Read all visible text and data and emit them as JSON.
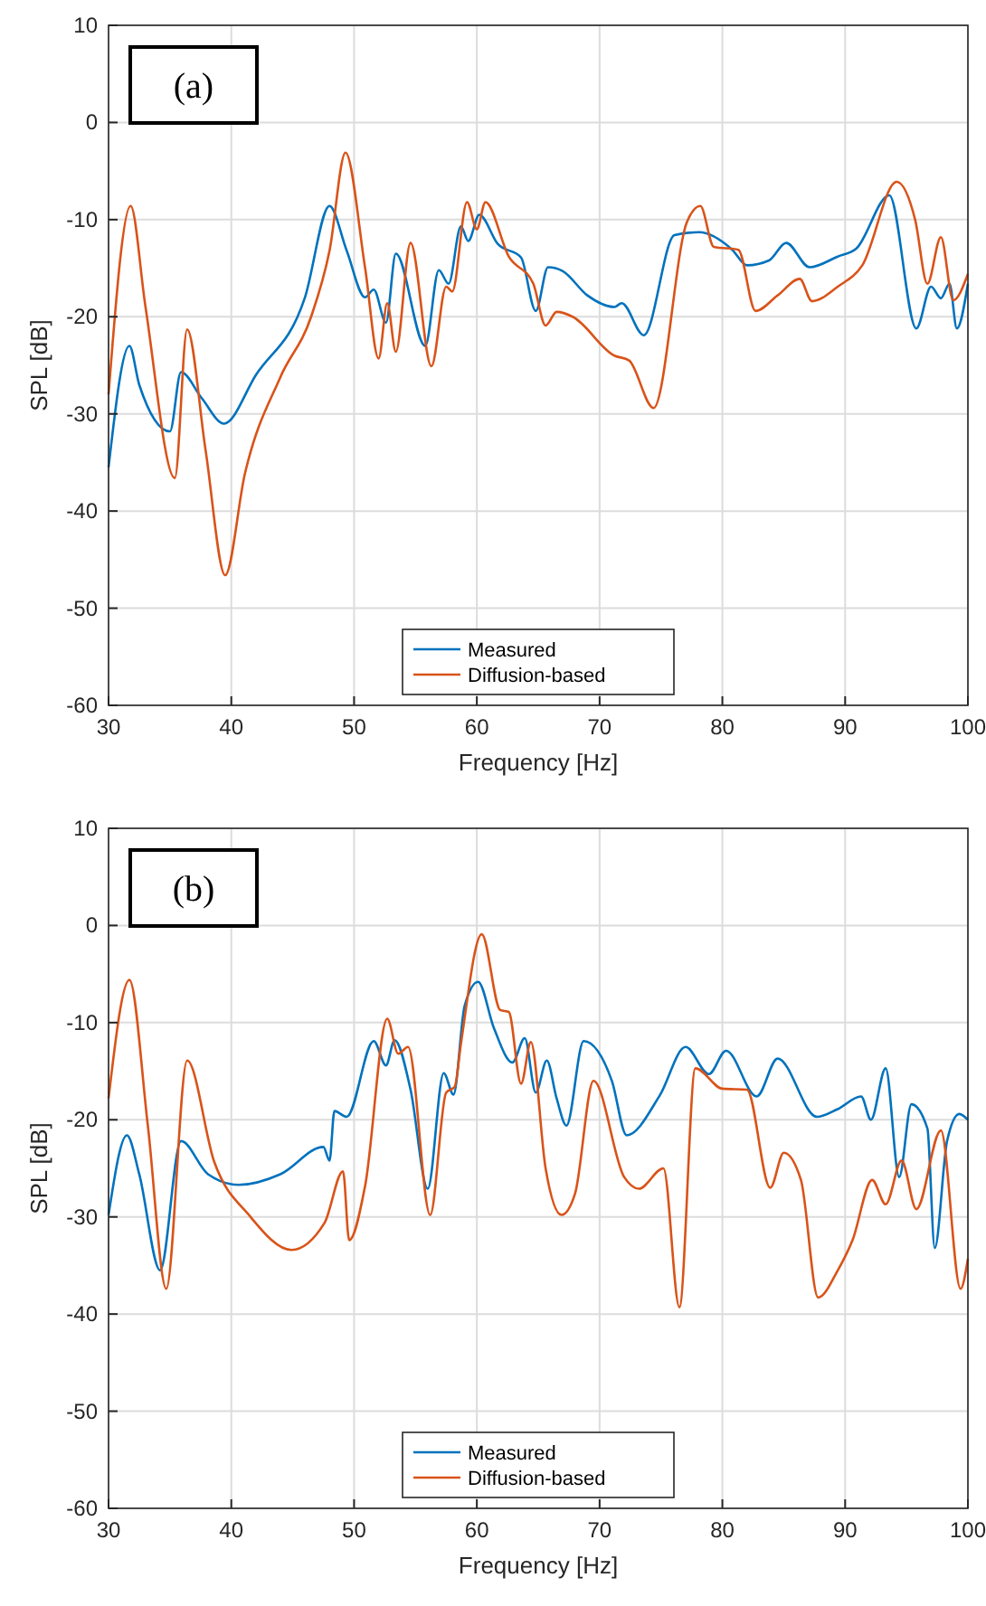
{
  "chart_data": [
    {
      "type": "line",
      "xlabel": "Frequency [Hz]",
      "ylabel": "SPL [dB]",
      "xlim": [
        30,
        100
      ],
      "ylim": [
        -60,
        10
      ],
      "xticks": [
        30,
        40,
        50,
        60,
        70,
        80,
        90,
        100
      ],
      "yticks": [
        -60,
        -50,
        -40,
        -30,
        -20,
        -10,
        0,
        10
      ],
      "grid": true,
      "legend": "bottom",
      "annotations": [
        "(a)"
      ],
      "series": [
        {
          "name": "Measured",
          "color": "#0072bd",
          "x": [
            30,
            31.7,
            32.5,
            35,
            35.9,
            37.6,
            39.4,
            42,
            46,
            48,
            49.4,
            50.9,
            51.6,
            52.6,
            53.4,
            55.8,
            56.9,
            57.7,
            58.7,
            59.3,
            60.2,
            61.7,
            63.6,
            64.8,
            65.8,
            67,
            69,
            71.2,
            71.8,
            73.6,
            76.1,
            78.1,
            80.8,
            82,
            83.8,
            85.2,
            87.1,
            89.4,
            90.9,
            93.6,
            95.8,
            97,
            97.8,
            98.5,
            99.1,
            100
          ],
          "values": [
            -35.5,
            -23,
            -27,
            -31.8,
            -25.7,
            -28.4,
            -31,
            -26,
            -18,
            -8.6,
            -13.2,
            -18,
            -17.2,
            -20.6,
            -13.5,
            -23,
            -15.2,
            -16.6,
            -10.7,
            -12.2,
            -9.5,
            -12.5,
            -13.9,
            -19.4,
            -14.9,
            -15.3,
            -17.8,
            -19,
            -18.6,
            -21.9,
            -11.6,
            -11.3,
            -13.1,
            -14.7,
            -14.2,
            -12.4,
            -14.9,
            -13.8,
            -13,
            -7.5,
            -21.2,
            -16.9,
            -18.1,
            -16.6,
            -21.2,
            -16.6
          ]
        },
        {
          "name": "Diffusion-based",
          "color": "#d95319",
          "x": [
            30,
            31.8,
            33,
            35.4,
            36.4,
            37.9,
            39.5,
            41.1,
            44,
            46.5,
            48,
            49.3,
            50.9,
            52,
            52.7,
            53.4,
            54.6,
            56.3,
            57.5,
            58,
            59.2,
            60,
            60.7,
            62.6,
            64.6,
            65.6,
            66.5,
            67.8,
            71.2,
            72.4,
            74.4,
            77.1,
            78.2,
            79.3,
            81.3,
            82.7,
            84.5,
            86.3,
            87.3,
            89.4,
            91.4,
            94.2,
            95.7,
            96.7,
            97.8,
            98.8,
            100
          ],
          "values": [
            -28,
            -8.6,
            -18.9,
            -36.6,
            -21.3,
            -33.7,
            -46.6,
            -36.2,
            -26.2,
            -20,
            -13.2,
            -3.1,
            -15,
            -24.3,
            -18.6,
            -23.6,
            -12.4,
            -25.1,
            -16.9,
            -17.4,
            -8.2,
            -11,
            -8.2,
            -13.8,
            -16.6,
            -20.9,
            -19.5,
            -20,
            -24,
            -24.5,
            -29.4,
            -10.3,
            -8.6,
            -12.8,
            -13.1,
            -19.4,
            -17.8,
            -16.1,
            -18.4,
            -16.9,
            -14.7,
            -6.1,
            -10,
            -16.6,
            -11.8,
            -18.3,
            -15.6
          ]
        }
      ]
    },
    {
      "type": "line",
      "xlabel": "Frequency [Hz]",
      "ylabel": "SPL [dB]",
      "xlim": [
        30,
        100
      ],
      "ylim": [
        -60,
        10
      ],
      "xticks": [
        30,
        40,
        50,
        60,
        70,
        80,
        90,
        100
      ],
      "yticks": [
        -60,
        -50,
        -40,
        -30,
        -20,
        -10,
        0,
        10
      ],
      "grid": true,
      "legend": "bottom",
      "annotations": [
        "(b)"
      ],
      "series": [
        {
          "name": "Measured",
          "color": "#0072bd",
          "x": [
            30,
            31.5,
            32.5,
            34.2,
            35.9,
            38.1,
            40.6,
            44,
            47.5,
            48,
            48.4,
            49.4,
            51.6,
            52.6,
            53.3,
            54.6,
            56,
            57.3,
            58.1,
            59,
            60.1,
            61.4,
            62.9,
            63.9,
            64.8,
            65.7,
            66.5,
            67.3,
            68.7,
            71,
            72.2,
            74.9,
            77,
            78.9,
            80.3,
            82.8,
            84.5,
            87.7,
            89.4,
            91.3,
            92.1,
            93.3,
            94.4,
            95.4,
            96.7,
            97.3,
            98.3,
            99.3,
            100
          ],
          "values": [
            -29.8,
            -21.6,
            -25.6,
            -35.5,
            -22.2,
            -25.6,
            -26.7,
            -25.6,
            -22.8,
            -24.2,
            -19.1,
            -19.7,
            -11.9,
            -14.4,
            -11.8,
            -16.9,
            -27.1,
            -15.2,
            -17.4,
            -8.3,
            -5.8,
            -10.6,
            -14.1,
            -11.6,
            -17.2,
            -13.9,
            -17.8,
            -20.6,
            -11.9,
            -16,
            -21.6,
            -17.5,
            -12.5,
            -15.3,
            -12.9,
            -17.6,
            -13.7,
            -19.7,
            -18.9,
            -17.6,
            -20,
            -14.7,
            -25.9,
            -18.4,
            -20.9,
            -33.2,
            -22.2,
            -19.4,
            -20
          ]
        },
        {
          "name": "Diffusion-based",
          "color": "#d95319",
          "x": [
            30,
            31.7,
            33.2,
            34.7,
            36.4,
            38.6,
            41.5,
            44.9,
            47.6,
            49.1,
            49.6,
            50.9,
            52.7,
            53.6,
            54.4,
            56.2,
            57.5,
            58.2,
            58.7,
            60.4,
            61.9,
            62.6,
            63.6,
            64.4,
            65.6,
            66.9,
            68,
            69.5,
            72,
            73.2,
            75.2,
            76.5,
            77.8,
            80,
            82,
            83.9,
            85,
            86.4,
            87.8,
            89.4,
            90.6,
            92.2,
            93.3,
            94.6,
            95.8,
            97.8,
            99.4,
            100
          ],
          "values": [
            -17.8,
            -5.6,
            -20.6,
            -37.4,
            -13.9,
            -24.3,
            -29.9,
            -33.4,
            -30.6,
            -25.3,
            -32.4,
            -26.8,
            -9.6,
            -13.2,
            -12.5,
            -29.8,
            -17.2,
            -16.6,
            -12.2,
            -0.9,
            -8.7,
            -8.9,
            -16.3,
            -12,
            -25,
            -29.8,
            -27.6,
            -16,
            -25.9,
            -27.1,
            -25,
            -39.3,
            -14.7,
            -16.8,
            -16.9,
            -27,
            -23.4,
            -26.2,
            -38.3,
            -35.5,
            -32.4,
            -26.2,
            -28.7,
            -24.2,
            -29.2,
            -21.1,
            -37.4,
            -34.3
          ]
        }
      ]
    }
  ]
}
